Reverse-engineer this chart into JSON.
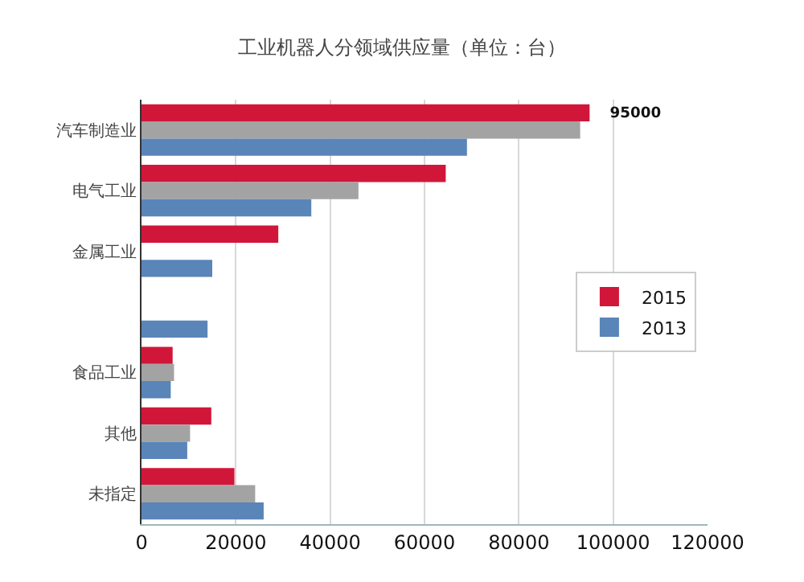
{
  "chart_data": {
    "type": "bar",
    "orientation": "horizontal",
    "title": "工业机器人分领域供应量（单位：台）",
    "categories": [
      "汽车制造业",
      "电气工业",
      "金属工业",
      null,
      "食品工业",
      "其他",
      "未指定"
    ],
    "series": [
      {
        "name": "2015",
        "color": "#d0173a",
        "values": [
          95000,
          64500,
          29000,
          null,
          6600,
          14800,
          19700
        ],
        "value_labels": [
          "95000",
          null,
          null,
          null,
          null,
          null,
          null
        ]
      },
      {
        "color": "#a3a3a3",
        "values": [
          93000,
          46000,
          null,
          null,
          6900,
          10300,
          24100
        ]
      },
      {
        "name": "2013",
        "color": "#5a85b8",
        "values": [
          69000,
          36000,
          15000,
          14000,
          6200,
          9700,
          25900
        ]
      }
    ],
    "xlim": [
      0,
      120000
    ],
    "xticks": [
      0,
      20000,
      40000,
      60000,
      80000,
      100000,
      120000
    ],
    "grid": "x",
    "legend": "right"
  }
}
